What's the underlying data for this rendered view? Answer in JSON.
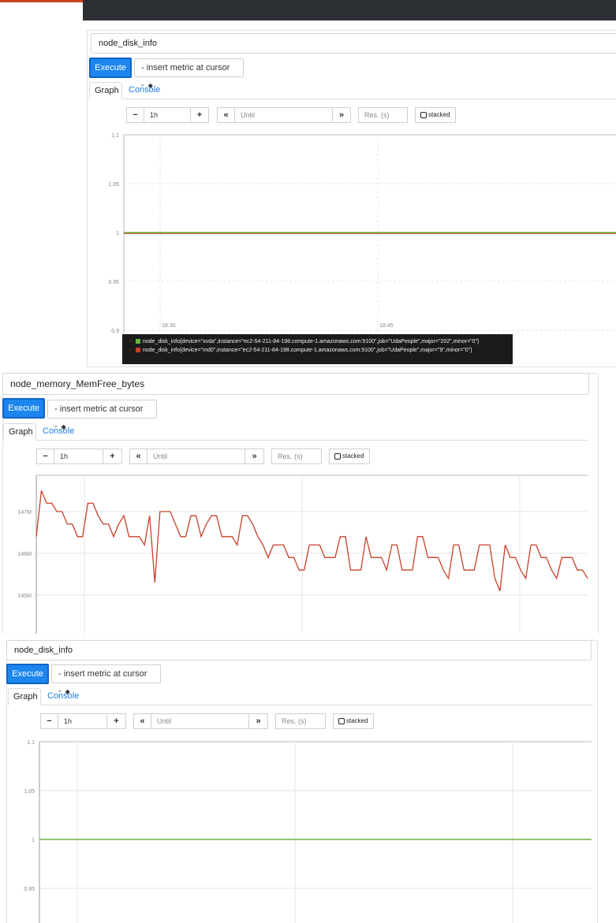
{
  "colors": {
    "accent": "#1c86ee",
    "green_series": "#6cb33f",
    "red_series": "#c8402a",
    "link": "#1d7ee6"
  },
  "panels": [
    {
      "expression": "node_disk_info",
      "execute_label": "Execute",
      "metric_select": "- insert metric at cursor -",
      "tabs": {
        "graph": "Graph",
        "console": "Console"
      },
      "controls": {
        "minus": "−",
        "range": "1h",
        "plus": "+",
        "back": "«",
        "until_placeholder": "Until",
        "forward": "»",
        "res_placeholder": "Res. (s)",
        "stacked": "stacked"
      },
      "y_ticks": [
        "1.1",
        "1.05",
        "1",
        "0.95",
        "0.9"
      ],
      "x_ticks": [
        "18:30",
        "18:45"
      ],
      "legend": [
        "node_disk_info{device=\"xvda\",instance=\"ec2-54-211-84-198.compute-1.amazonaws.com:9100\",job=\"UdaPeople\",major=\"202\",minor=\"0\"}",
        "node_disk_info{device=\"md0\",instance=\"ec2-54-211-84-198.compute-1.amazonaws.com:9100\",job=\"UdaPeople\",major=\"9\",minor=\"0\"}"
      ]
    },
    {
      "expression": "node_memory_MemFree_bytes",
      "execute_label": "Execute",
      "metric_select": "- insert metric at cursor -",
      "tabs": {
        "graph": "Graph",
        "console": "Console"
      },
      "controls": {
        "minus": "−",
        "range": "1h",
        "plus": "+",
        "back": "«",
        "until_placeholder": "Until",
        "forward": "»",
        "res_placeholder": "Res. (s)",
        "stacked": "stacked"
      },
      "y_ticks": [
        "147M",
        "146M",
        "145M"
      ]
    },
    {
      "expression": "node_disk_info",
      "execute_label": "Execute",
      "metric_select": "- insert metric at cursor -",
      "tabs": {
        "graph": "Graph",
        "console": "Console"
      },
      "controls": {
        "minus": "−",
        "range": "1h",
        "plus": "+",
        "back": "«",
        "until_placeholder": "Until",
        "forward": "»",
        "res_placeholder": "Res. (s)",
        "stacked": "stacked"
      },
      "y_ticks": [
        "1.1",
        "1.05",
        "1",
        "0.95"
      ]
    }
  ],
  "chart_data": [
    {
      "type": "line",
      "title": "node_disk_info",
      "x": [
        "18:30",
        "18:45"
      ],
      "ylim": [
        0.9,
        1.1
      ],
      "y_ticks": [
        1.1,
        1.05,
        1,
        0.95,
        0.9
      ],
      "series": [
        {
          "name": "node_disk_info{device=\"xvda\"}",
          "values": [
            1,
            1
          ],
          "color": "#6cb33f"
        },
        {
          "name": "node_disk_info{device=\"md0\"}",
          "values": [
            1,
            1
          ],
          "color": "#c8402a"
        }
      ]
    },
    {
      "type": "line",
      "title": "node_memory_MemFree_bytes",
      "ylim": [
        144.1,
        147.8
      ],
      "y_ticks": [
        147,
        146,
        145
      ],
      "y_unit": "M",
      "series": [
        {
          "name": "node_memory_MemFree_bytes",
          "color": "#c8402a",
          "values": [
            146.4,
            147.5,
            147.2,
            147.2,
            147.0,
            147.0,
            146.7,
            146.7,
            146.4,
            146.4,
            147.2,
            147.2,
            146.9,
            146.7,
            146.7,
            146.4,
            146.7,
            146.9,
            146.4,
            146.4,
            146.4,
            146.2,
            146.9,
            145.3,
            147.0,
            147.0,
            147.0,
            146.7,
            146.4,
            146.4,
            146.9,
            146.9,
            146.4,
            146.7,
            146.9,
            146.9,
            146.4,
            146.4,
            146.4,
            146.2,
            146.9,
            146.9,
            146.7,
            146.4,
            146.2,
            145.9,
            146.2,
            146.2,
            146.2,
            145.9,
            145.9,
            145.6,
            145.6,
            146.2,
            146.2,
            146.2,
            145.9,
            145.9,
            145.9,
            146.4,
            146.4,
            145.6,
            145.6,
            145.6,
            146.4,
            145.9,
            145.9,
            145.9,
            145.6,
            146.2,
            146.2,
            145.6,
            145.6,
            145.6,
            146.4,
            146.4,
            145.9,
            145.9,
            145.9,
            145.6,
            145.4,
            146.2,
            146.2,
            145.6,
            145.6,
            145.6,
            146.2,
            146.2,
            146.2,
            145.4,
            145.1,
            146.2,
            145.9,
            145.9,
            145.6,
            145.4,
            146.2,
            146.2,
            145.9,
            145.9,
            145.6,
            145.4,
            145.9,
            145.9,
            145.9,
            145.6,
            145.6,
            145.4
          ]
        }
      ]
    },
    {
      "type": "line",
      "title": "node_disk_info",
      "ylim": [
        0.9,
        1.1
      ],
      "y_ticks": [
        1.1,
        1.05,
        1,
        0.95
      ],
      "series": [
        {
          "name": "node_disk_info",
          "values": [
            1,
            1
          ],
          "color": "#6cb33f"
        }
      ]
    }
  ]
}
